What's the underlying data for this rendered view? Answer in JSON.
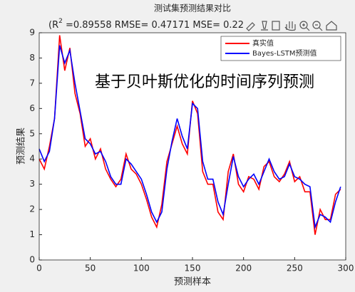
{
  "chart_data": {
    "type": "line",
    "title": "测试集预测结果对比",
    "subtitle_prefix": "(R",
    "subtitle_sup": "2",
    "subtitle_rest": " =0.89558 RMSE= 0.47171 MSE= 0.22",
    "annotation": "基于贝叶斯优化的时间序列预测",
    "xlabel": "预测样本",
    "ylabel": "预测结果",
    "xlim": [
      0,
      300
    ],
    "xticks": [
      0,
      50,
      100,
      150,
      200,
      250,
      300
    ],
    "ylim": [
      0,
      9
    ],
    "yticks": [
      0,
      1,
      2,
      3,
      4,
      5,
      6,
      7,
      8,
      9
    ],
    "legend": "upper-right",
    "x": [
      0,
      5,
      10,
      15,
      20,
      25,
      30,
      35,
      40,
      45,
      50,
      55,
      60,
      65,
      70,
      75,
      80,
      85,
      90,
      95,
      100,
      105,
      110,
      115,
      120,
      125,
      130,
      135,
      140,
      145,
      150,
      155,
      160,
      165,
      170,
      175,
      180,
      185,
      190,
      195,
      200,
      205,
      210,
      215,
      220,
      225,
      230,
      235,
      240,
      245,
      250,
      255,
      260,
      265,
      270,
      275,
      280,
      285,
      290,
      295
    ],
    "series": [
      {
        "name": "真实值",
        "color": "#ff0000",
        "values": [
          4.0,
          3.6,
          4.5,
          5.6,
          8.9,
          7.5,
          8.4,
          6.6,
          5.8,
          4.5,
          4.8,
          4.0,
          4.4,
          3.6,
          3.2,
          2.9,
          3.2,
          4.2,
          3.6,
          3.4,
          3.0,
          2.4,
          1.7,
          1.3,
          2.2,
          3.9,
          4.6,
          5.3,
          4.6,
          4.2,
          6.3,
          5.8,
          3.5,
          3.0,
          3.0,
          1.9,
          1.6,
          3.5,
          4.2,
          3.0,
          2.7,
          3.3,
          3.2,
          2.8,
          3.7,
          3.9,
          3.3,
          3.1,
          3.4,
          3.9,
          3.1,
          3.3,
          2.7,
          2.7,
          1.0,
          2.0,
          1.6,
          1.6,
          2.6,
          2.8
        ]
      },
      {
        "name": "Bayes-LSTM预测值",
        "color": "#0000ff",
        "values": [
          4.4,
          3.9,
          4.3,
          5.6,
          8.5,
          7.8,
          8.3,
          7.0,
          5.9,
          4.8,
          4.6,
          4.2,
          4.3,
          3.9,
          3.3,
          3.0,
          3.0,
          4.0,
          3.8,
          3.5,
          3.2,
          2.6,
          1.9,
          1.5,
          1.9,
          3.6,
          4.7,
          5.6,
          4.9,
          4.4,
          6.2,
          6.0,
          3.9,
          3.2,
          3.2,
          2.3,
          1.8,
          3.0,
          4.1,
          3.3,
          2.9,
          3.2,
          3.4,
          3.0,
          3.5,
          4.0,
          3.5,
          3.2,
          3.3,
          3.8,
          3.3,
          3.2,
          3.0,
          2.9,
          1.3,
          1.8,
          1.7,
          1.5,
          2.3,
          2.9
        ]
      }
    ]
  }
}
